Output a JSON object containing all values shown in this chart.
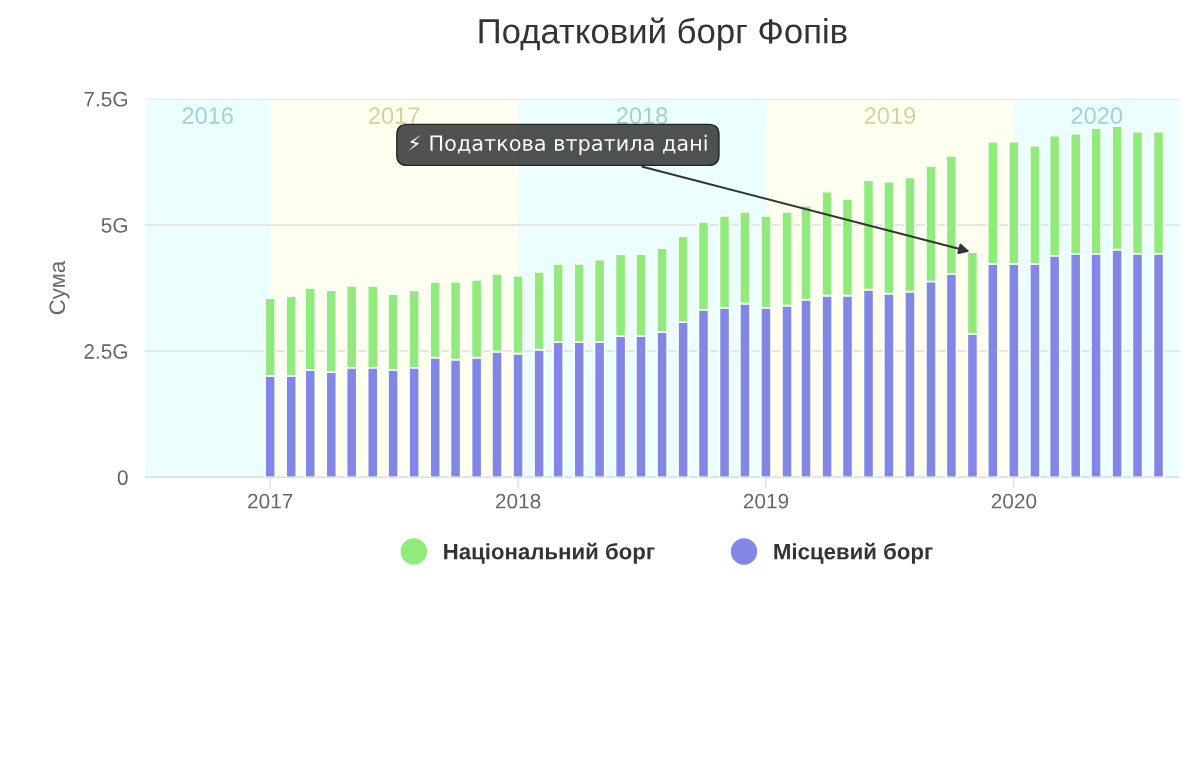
{
  "chart_data": {
    "type": "bar",
    "stacked": true,
    "title": "Податковий борг Фопів",
    "ylabel": "Сума",
    "x": [
      "2017-01",
      "2017-02",
      "2017-03",
      "2017-04",
      "2017-05",
      "2017-06",
      "2017-07",
      "2017-08",
      "2017-09",
      "2017-10",
      "2017-11",
      "2017-12",
      "2018-01",
      "2018-02",
      "2018-03",
      "2018-04",
      "2018-05",
      "2018-06",
      "2018-07",
      "2018-08",
      "2018-09",
      "2018-10",
      "2018-11",
      "2018-12",
      "2019-01",
      "2019-02",
      "2019-03",
      "2019-04",
      "2019-05",
      "2019-06",
      "2019-07",
      "2019-08",
      "2019-09",
      "2019-10",
      "2019-11",
      "2019-12",
      "2020-01",
      "2020-02",
      "2020-03",
      "2020-04",
      "2020-05",
      "2020-06",
      "2020-07",
      "2020-08"
    ],
    "series": [
      {
        "name": "Місцевий борг",
        "color": "#8287e6",
        "values": [
          2.01,
          2.01,
          2.13,
          2.09,
          2.17,
          2.17,
          2.13,
          2.17,
          2.37,
          2.33,
          2.37,
          2.49,
          2.45,
          2.53,
          2.68,
          2.68,
          2.68,
          2.8,
          2.8,
          2.88,
          3.08,
          3.32,
          3.36,
          3.44,
          3.36,
          3.4,
          3.52,
          3.6,
          3.6,
          3.72,
          3.64,
          3.68,
          3.88,
          4.03,
          2.84,
          4.23,
          4.23,
          4.23,
          4.39,
          4.43,
          4.43,
          4.51,
          4.43,
          4.43
        ]
      },
      {
        "name": "Національний борг",
        "color": "#90eb7c",
        "values": [
          1.54,
          1.58,
          1.62,
          1.62,
          1.62,
          1.62,
          1.5,
          1.54,
          1.5,
          1.54,
          1.54,
          1.54,
          1.54,
          1.54,
          1.55,
          1.55,
          1.63,
          1.62,
          1.62,
          1.66,
          1.7,
          1.74,
          1.82,
          1.82,
          1.82,
          1.86,
          1.86,
          2.06,
          1.91,
          2.17,
          2.22,
          2.26,
          2.29,
          2.34,
          1.62,
          2.42,
          2.42,
          2.34,
          2.38,
          2.38,
          2.49,
          2.45,
          2.42,
          2.42
        ]
      }
    ],
    "xlim": [
      "2016-07",
      "2020-09"
    ],
    "xticks": [
      "2017",
      "2018",
      "2019",
      "2020"
    ],
    "ylim": [
      0,
      7.5
    ],
    "yticks": [
      0,
      {
        "value": 2.5,
        "label": "2.5G"
      },
      {
        "value": 5,
        "label": "5G"
      },
      {
        "value": 7.5,
        "label": "7.5G"
      }
    ],
    "grid": "y",
    "legend": "bottom",
    "marker": "circle",
    "bands": [
      {
        "axis": "x",
        "from": "2016-07",
        "to": "2017",
        "label": "2016",
        "color": "#ecffff"
      },
      {
        "axis": "x",
        "from": "2017",
        "to": "2018",
        "label": "2017",
        "color": "#fffff0"
      },
      {
        "axis": "x",
        "from": "2018",
        "to": "2019",
        "label": "2018",
        "color": "#ecffff"
      },
      {
        "axis": "x",
        "from": "2019",
        "to": "2020",
        "label": "2019",
        "color": "#fffff0"
      },
      {
        "axis": "x",
        "from": "2020",
        "to": "2020-09",
        "label": "2020",
        "color": "#ecffff"
      }
    ],
    "annotations": [
      {
        "text": "⚡ Податкова втратила дані",
        "x": "2019-11",
        "y": 4.46
      }
    ]
  }
}
